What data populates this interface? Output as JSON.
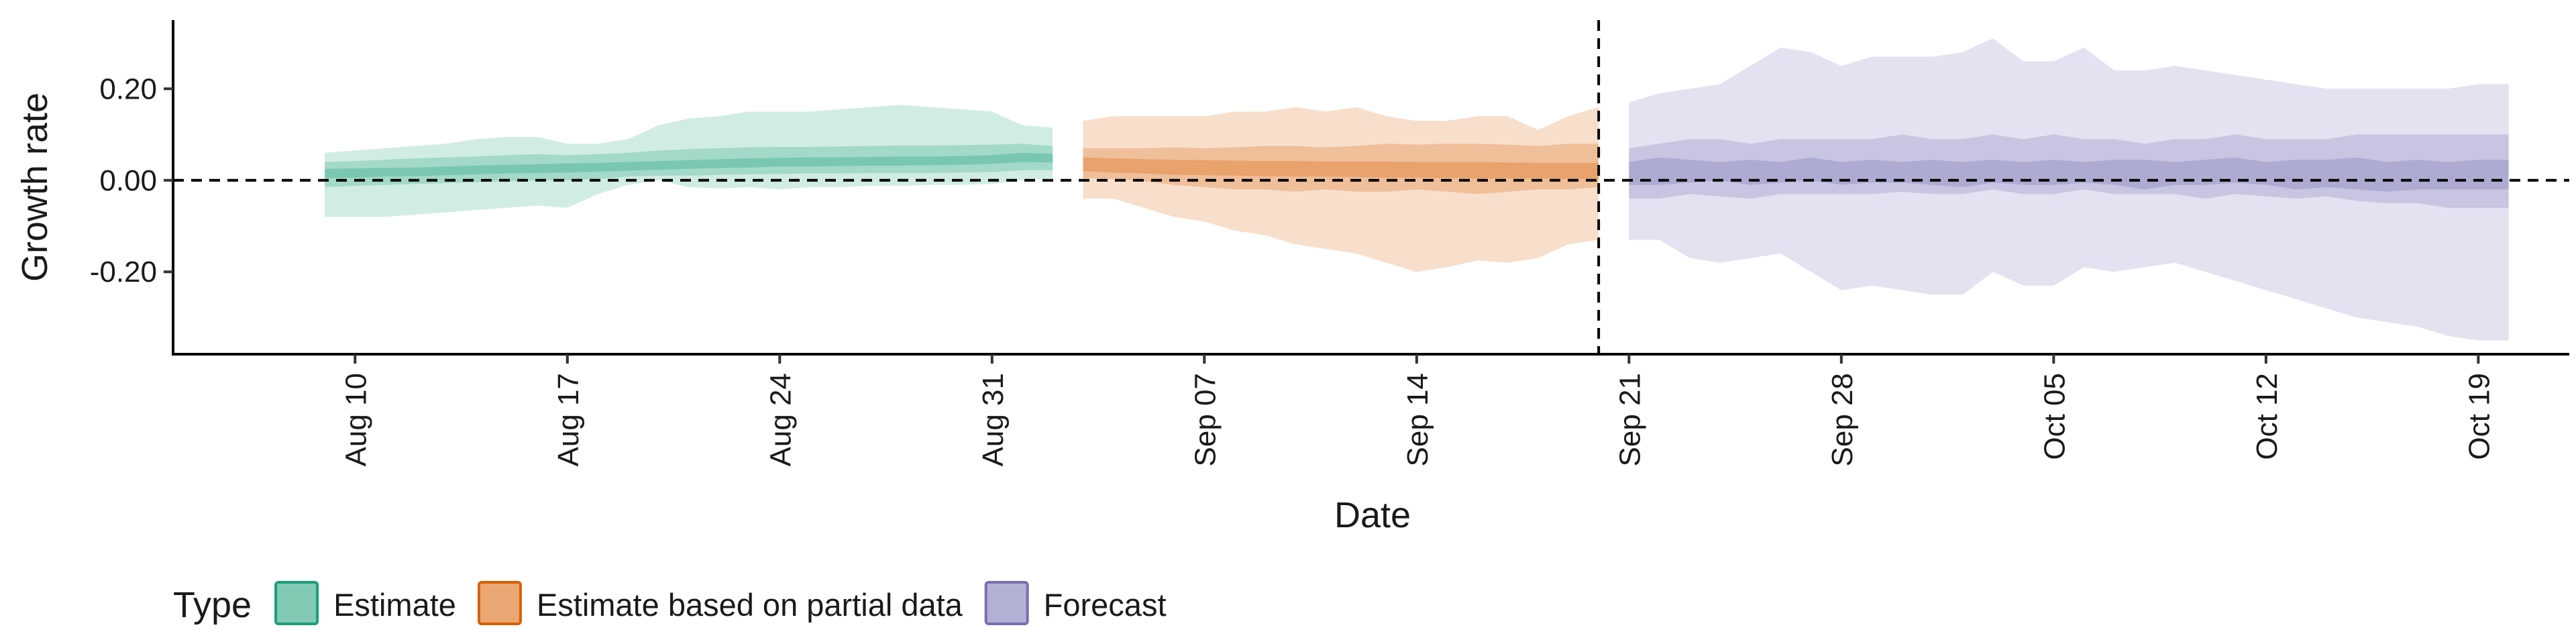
{
  "chart_data": {
    "type": "area",
    "xlabel": "Date",
    "ylabel": "Growth rate",
    "ylim": [
      -0.38,
      0.35
    ],
    "xlim": [
      "2020-08-04",
      "2020-10-22"
    ],
    "x_ticks": [
      {
        "date": "2020-08-10",
        "label": "Aug 10"
      },
      {
        "date": "2020-08-17",
        "label": "Aug 17"
      },
      {
        "date": "2020-08-24",
        "label": "Aug 24"
      },
      {
        "date": "2020-08-31",
        "label": "Aug 31"
      },
      {
        "date": "2020-09-07",
        "label": "Sep 07"
      },
      {
        "date": "2020-09-14",
        "label": "Sep 14"
      },
      {
        "date": "2020-09-21",
        "label": "Sep 21"
      },
      {
        "date": "2020-09-28",
        "label": "Sep 28"
      },
      {
        "date": "2020-10-05",
        "label": "Oct 05"
      },
      {
        "date": "2020-10-12",
        "label": "Oct 12"
      },
      {
        "date": "2020-10-19",
        "label": "Oct 19"
      }
    ],
    "y_ticks": [
      {
        "value": 0.2,
        "label": "0.20"
      },
      {
        "value": 0.0,
        "label": "0.00"
      },
      {
        "value": -0.2,
        "label": "-0.20"
      }
    ],
    "reference_lines": [
      {
        "axis": "y",
        "value": 0.0,
        "style": "dashed"
      },
      {
        "axis": "x",
        "value": "2020-09-20",
        "style": "dashed"
      }
    ],
    "legend": {
      "title": "Type",
      "position": "bottom-left",
      "entries": [
        "Estimate",
        "Estimate based on partial data",
        "Forecast"
      ]
    },
    "grid": false,
    "series": [
      {
        "name": "Estimate",
        "color": "#1b9e77",
        "x": [
          "2020-08-09",
          "2020-08-10",
          "2020-08-11",
          "2020-08-12",
          "2020-08-13",
          "2020-08-14",
          "2020-08-15",
          "2020-08-16",
          "2020-08-17",
          "2020-08-18",
          "2020-08-19",
          "2020-08-20",
          "2020-08-21",
          "2020-08-22",
          "2020-08-23",
          "2020-08-24",
          "2020-08-25",
          "2020-08-26",
          "2020-08-27",
          "2020-08-28",
          "2020-08-29",
          "2020-08-30",
          "2020-08-31",
          "2020-09-01",
          "2020-09-02"
        ],
        "median": [
          0.015,
          0.016,
          0.017,
          0.018,
          0.02,
          0.022,
          0.024,
          0.025,
          0.027,
          0.028,
          0.03,
          0.032,
          0.034,
          0.036,
          0.038,
          0.039,
          0.04,
          0.04,
          0.041,
          0.042,
          0.042,
          0.043,
          0.045,
          0.05,
          0.048
        ],
        "lower_90": [
          -0.08,
          -0.08,
          -0.08,
          -0.075,
          -0.07,
          -0.065,
          -0.06,
          -0.055,
          -0.06,
          -0.03,
          -0.01,
          0.0,
          -0.015,
          -0.018,
          -0.015,
          -0.02,
          -0.015,
          -0.015,
          -0.012,
          -0.012,
          -0.01,
          -0.01,
          -0.008,
          0.0,
          0.005
        ],
        "upper_90": [
          0.06,
          0.065,
          0.07,
          0.075,
          0.08,
          0.09,
          0.095,
          0.095,
          0.08,
          0.08,
          0.09,
          0.12,
          0.135,
          0.14,
          0.15,
          0.15,
          0.15,
          0.155,
          0.16,
          0.165,
          0.16,
          0.155,
          0.15,
          0.12,
          0.115
        ],
        "lower_50": [
          -0.015,
          -0.012,
          -0.01,
          -0.008,
          -0.006,
          -0.004,
          -0.002,
          0.0,
          0.0,
          0.003,
          0.008,
          0.01,
          0.01,
          0.012,
          0.013,
          0.014,
          0.015,
          0.015,
          0.016,
          0.016,
          0.016,
          0.017,
          0.018,
          0.022,
          0.022
        ],
        "upper_50": [
          0.04,
          0.042,
          0.045,
          0.048,
          0.05,
          0.052,
          0.055,
          0.057,
          0.055,
          0.057,
          0.06,
          0.065,
          0.068,
          0.07,
          0.072,
          0.073,
          0.073,
          0.074,
          0.075,
          0.076,
          0.076,
          0.077,
          0.078,
          0.08,
          0.075
        ],
        "lower_20": [
          0.005,
          0.006,
          0.008,
          0.009,
          0.011,
          0.013,
          0.015,
          0.016,
          0.017,
          0.019,
          0.021,
          0.023,
          0.025,
          0.027,
          0.028,
          0.03,
          0.03,
          0.031,
          0.032,
          0.032,
          0.033,
          0.034,
          0.036,
          0.04,
          0.039
        ],
        "upper_20": [
          0.025,
          0.026,
          0.027,
          0.028,
          0.03,
          0.032,
          0.034,
          0.035,
          0.037,
          0.038,
          0.04,
          0.042,
          0.044,
          0.046,
          0.048,
          0.049,
          0.05,
          0.05,
          0.051,
          0.052,
          0.052,
          0.053,
          0.055,
          0.06,
          0.058
        ]
      },
      {
        "name": "Estimate based on partial data",
        "color": "#d95f02",
        "x": [
          "2020-09-03",
          "2020-09-04",
          "2020-09-05",
          "2020-09-06",
          "2020-09-07",
          "2020-09-08",
          "2020-09-09",
          "2020-09-10",
          "2020-09-11",
          "2020-09-12",
          "2020-09-13",
          "2020-09-14",
          "2020-09-15",
          "2020-09-16",
          "2020-09-17",
          "2020-09-18",
          "2020-09-19",
          "2020-09-20"
        ],
        "median": [
          0.035,
          0.032,
          0.03,
          0.028,
          0.027,
          0.026,
          0.025,
          0.025,
          0.024,
          0.024,
          0.023,
          0.023,
          0.022,
          0.022,
          0.021,
          0.021,
          0.02,
          0.02
        ],
        "lower_90": [
          -0.04,
          -0.04,
          -0.06,
          -0.08,
          -0.09,
          -0.11,
          -0.12,
          -0.14,
          -0.15,
          -0.16,
          -0.18,
          -0.2,
          -0.19,
          -0.175,
          -0.18,
          -0.17,
          -0.14,
          -0.13
        ],
        "upper_90": [
          0.13,
          0.14,
          0.14,
          0.14,
          0.14,
          0.15,
          0.15,
          0.16,
          0.15,
          0.16,
          0.14,
          0.13,
          0.13,
          0.14,
          0.14,
          0.11,
          0.14,
          0.16
        ],
        "lower_50": [
          0.005,
          0.003,
          -0.002,
          -0.01,
          -0.015,
          -0.02,
          -0.02,
          -0.025,
          -0.02,
          -0.025,
          -0.025,
          -0.02,
          -0.025,
          -0.03,
          -0.025,
          -0.02,
          -0.02,
          -0.015
        ],
        "upper_50": [
          0.07,
          0.07,
          0.07,
          0.072,
          0.07,
          0.072,
          0.075,
          0.075,
          0.072,
          0.075,
          0.08,
          0.078,
          0.08,
          0.08,
          0.078,
          0.075,
          0.08,
          0.08
        ],
        "lower_20": [
          0.02,
          0.017,
          0.015,
          0.012,
          0.011,
          0.01,
          0.009,
          0.008,
          0.008,
          0.007,
          0.006,
          0.006,
          0.005,
          0.004,
          0.004,
          0.004,
          0.003,
          0.003
        ],
        "upper_20": [
          0.05,
          0.048,
          0.046,
          0.045,
          0.044,
          0.043,
          0.042,
          0.042,
          0.041,
          0.041,
          0.041,
          0.04,
          0.04,
          0.04,
          0.039,
          0.038,
          0.038,
          0.038
        ]
      },
      {
        "name": "Forecast",
        "color": "#7570b3",
        "x": [
          "2020-09-21",
          "2020-09-22",
          "2020-09-23",
          "2020-09-24",
          "2020-09-25",
          "2020-09-26",
          "2020-09-27",
          "2020-09-28",
          "2020-09-29",
          "2020-09-30",
          "2020-10-01",
          "2020-10-02",
          "2020-10-03",
          "2020-10-04",
          "2020-10-05",
          "2020-10-06",
          "2020-10-07",
          "2020-10-08",
          "2020-10-09",
          "2020-10-10",
          "2020-10-11",
          "2020-10-12",
          "2020-10-13",
          "2020-10-14",
          "2020-10-15",
          "2020-10-16",
          "2020-10-17",
          "2020-10-18",
          "2020-10-19",
          "2020-10-20"
        ],
        "median": [
          0.02,
          0.02,
          0.02,
          0.02,
          0.02,
          0.02,
          0.02,
          0.02,
          0.02,
          0.02,
          0.02,
          0.02,
          0.02,
          0.02,
          0.02,
          0.02,
          0.02,
          0.02,
          0.02,
          0.02,
          0.02,
          0.02,
          0.02,
          0.02,
          0.02,
          0.02,
          0.02,
          0.02,
          0.02,
          0.02
        ],
        "lower_90": [
          -0.13,
          -0.13,
          -0.17,
          -0.18,
          -0.17,
          -0.16,
          -0.2,
          -0.24,
          -0.23,
          -0.24,
          -0.25,
          -0.25,
          -0.2,
          -0.23,
          -0.23,
          -0.19,
          -0.2,
          -0.19,
          -0.18,
          -0.2,
          -0.22,
          -0.24,
          -0.26,
          -0.28,
          -0.3,
          -0.31,
          -0.32,
          -0.34,
          -0.35,
          -0.35
        ],
        "upper_90": [
          0.17,
          0.19,
          0.2,
          0.21,
          0.25,
          0.29,
          0.28,
          0.25,
          0.27,
          0.27,
          0.27,
          0.28,
          0.31,
          0.26,
          0.26,
          0.29,
          0.24,
          0.24,
          0.25,
          0.24,
          0.23,
          0.22,
          0.21,
          0.2,
          0.2,
          0.2,
          0.2,
          0.2,
          0.21,
          0.21
        ],
        "lower_50": [
          -0.04,
          -0.04,
          -0.03,
          -0.035,
          -0.04,
          -0.03,
          -0.03,
          -0.03,
          -0.03,
          -0.025,
          -0.03,
          -0.03,
          -0.02,
          -0.03,
          -0.03,
          -0.02,
          -0.03,
          -0.03,
          -0.03,
          -0.04,
          -0.03,
          -0.035,
          -0.04,
          -0.035,
          -0.045,
          -0.05,
          -0.05,
          -0.06,
          -0.06,
          -0.06
        ],
        "upper_50": [
          0.07,
          0.08,
          0.09,
          0.09,
          0.08,
          0.09,
          0.09,
          0.09,
          0.09,
          0.1,
          0.09,
          0.09,
          0.1,
          0.09,
          0.1,
          0.09,
          0.09,
          0.08,
          0.09,
          0.09,
          0.1,
          0.09,
          0.09,
          0.09,
          0.1,
          0.1,
          0.1,
          0.1,
          0.1,
          0.1
        ],
        "lower_20": [
          -0.01,
          -0.01,
          -0.005,
          0.0,
          -0.01,
          -0.005,
          0.0,
          -0.01,
          -0.005,
          -0.005,
          -0.01,
          -0.015,
          -0.005,
          -0.01,
          -0.01,
          -0.005,
          -0.01,
          -0.02,
          -0.01,
          -0.01,
          -0.005,
          -0.01,
          -0.02,
          -0.015,
          -0.02,
          -0.025,
          -0.02,
          -0.02,
          -0.02,
          -0.02
        ],
        "upper_20": [
          0.04,
          0.05,
          0.045,
          0.04,
          0.045,
          0.04,
          0.05,
          0.04,
          0.045,
          0.04,
          0.045,
          0.04,
          0.045,
          0.04,
          0.045,
          0.04,
          0.045,
          0.045,
          0.04,
          0.045,
          0.05,
          0.04,
          0.045,
          0.045,
          0.05,
          0.04,
          0.045,
          0.04,
          0.045,
          0.045
        ]
      }
    ]
  }
}
